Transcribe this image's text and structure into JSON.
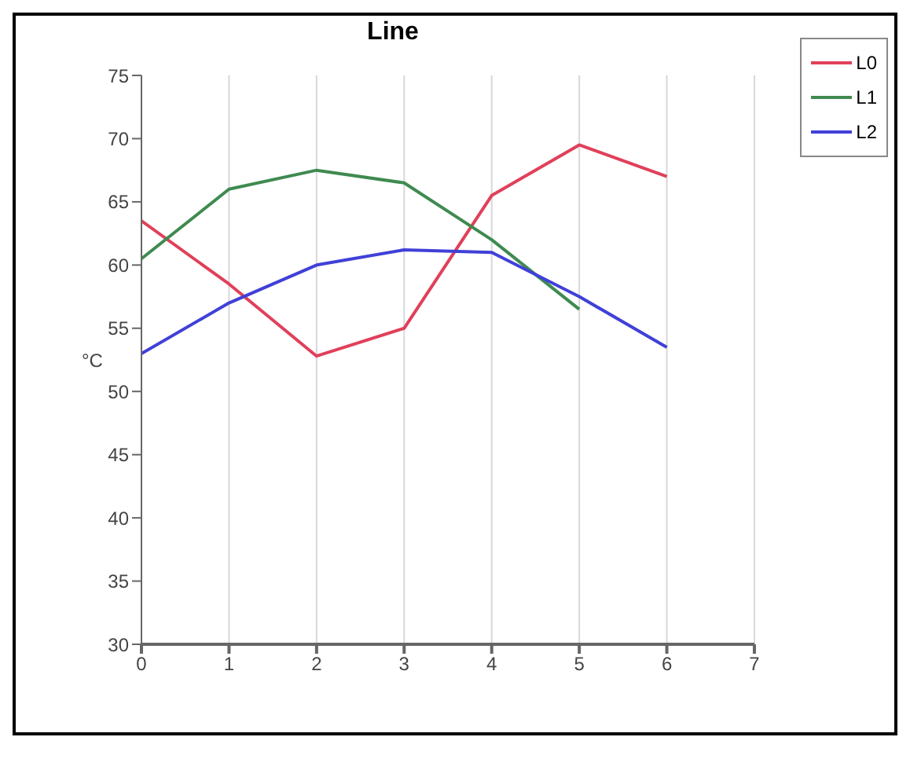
{
  "chart_data": {
    "type": "line",
    "title": "Line",
    "ylabel": "°C",
    "x": [
      0,
      1,
      2,
      3,
      4,
      5,
      6
    ],
    "series": [
      {
        "name": "L0",
        "color": "#e0405a",
        "values": [
          63.5,
          58.5,
          52.8,
          55,
          65.5,
          69.5,
          67
        ]
      },
      {
        "name": "L1",
        "color": "#3f8a50",
        "values": [
          60.5,
          66,
          67.5,
          66.5,
          62,
          56.5,
          null
        ]
      },
      {
        "name": "L2",
        "color": "#4040d8",
        "values": [
          53,
          57,
          60,
          61.2,
          61,
          57.5,
          53.5
        ]
      }
    ],
    "xlim": [
      0,
      7
    ],
    "xticks": [
      0,
      1,
      2,
      3,
      4,
      5,
      6,
      7
    ],
    "ylim": [
      30,
      75
    ],
    "yticks": [
      30,
      35,
      40,
      45,
      50,
      55,
      60,
      65,
      70,
      75
    ],
    "grid": "x",
    "legend": "top right",
    "marker": "none",
    "line_style": "solid"
  }
}
